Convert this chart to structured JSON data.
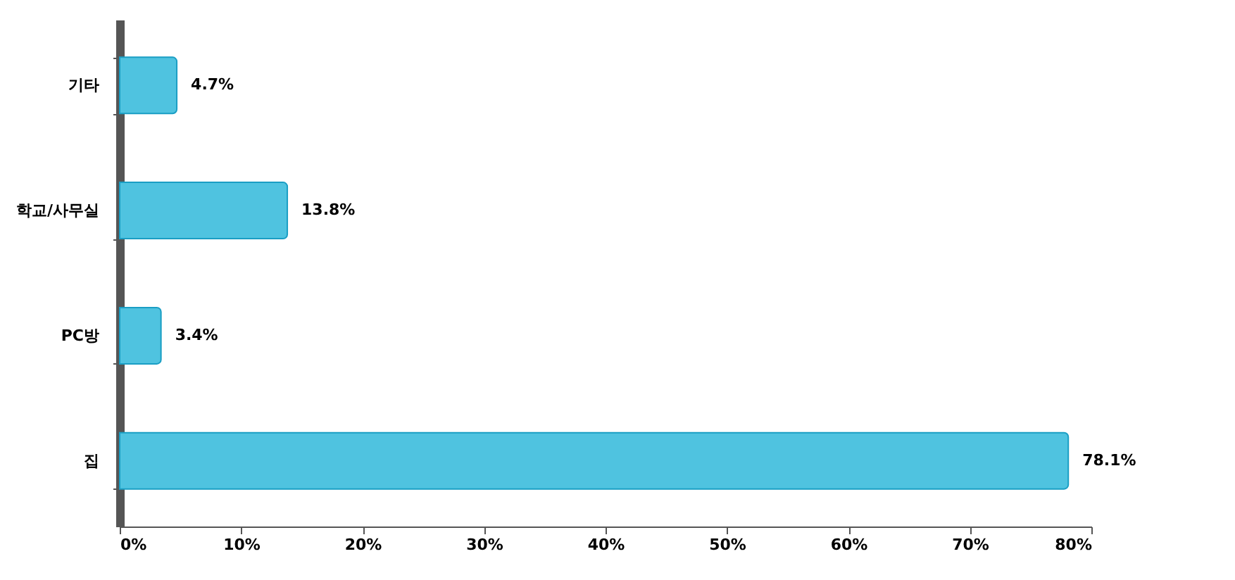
{
  "chart_data": {
    "type": "bar",
    "orientation": "horizontal",
    "categories": [
      "기타",
      "학교/사무실",
      "PC방",
      "집"
    ],
    "values": [
      4.7,
      13.8,
      3.4,
      78.1
    ],
    "value_labels": [
      "4.7%",
      "13.8%",
      "3.4%",
      "78.1%"
    ],
    "color": "#4fc3e0",
    "xlim": [
      0,
      80
    ],
    "xticks": [
      {
        "value": 0,
        "label": "0%"
      },
      {
        "value": 10,
        "label": "10%"
      },
      {
        "value": 20,
        "label": "20%"
      },
      {
        "value": 30,
        "label": "30%"
      },
      {
        "value": 40,
        "label": "40%"
      },
      {
        "value": 50,
        "label": "50%"
      },
      {
        "value": 60,
        "label": "60%"
      },
      {
        "value": 70,
        "label": "70%"
      },
      {
        "value": 80,
        "label": "80%"
      }
    ],
    "stacked": false
  }
}
